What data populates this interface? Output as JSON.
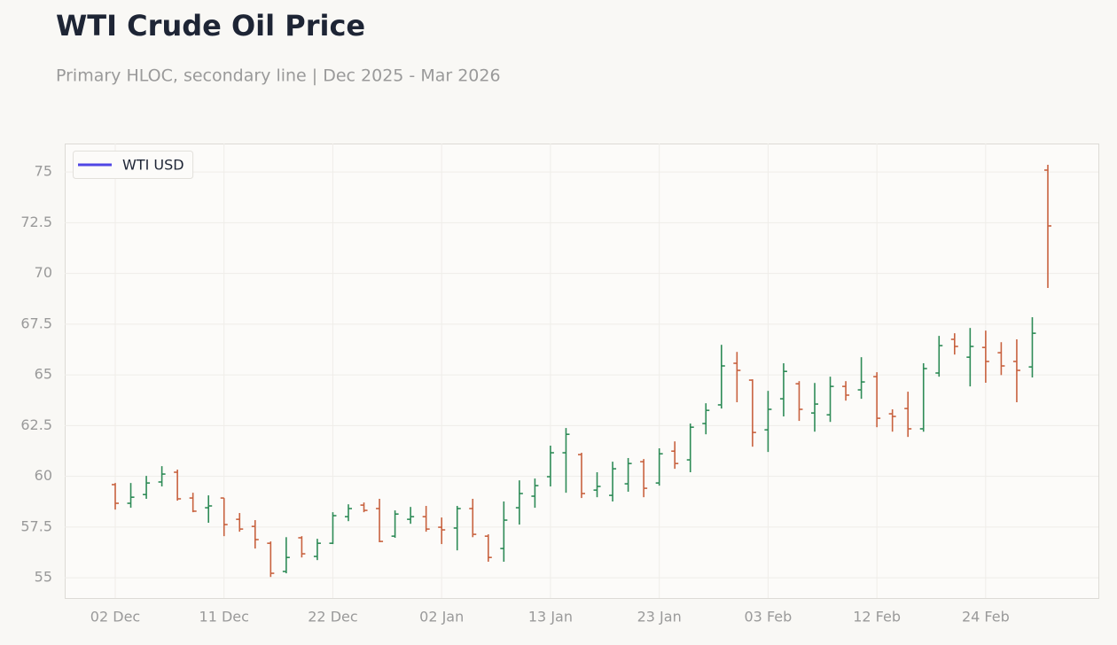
{
  "chart_data": {
    "type": "ohlc",
    "title": "WTI Crude Oil Price",
    "subtitle": "Primary HLOC, secondary line | Dec 2025 - Mar 2026",
    "categories": [
      "02 Dec",
      null,
      null,
      null,
      null,
      null,
      null,
      "11 Dec",
      null,
      null,
      null,
      null,
      null,
      null,
      "22 Dec",
      null,
      null,
      null,
      null,
      null,
      null,
      "02 Jan",
      null,
      null,
      null,
      null,
      null,
      null,
      "13 Jan",
      null,
      null,
      null,
      null,
      null,
      null,
      "23 Jan",
      null,
      null,
      null,
      null,
      null,
      null,
      "03 Feb",
      null,
      null,
      null,
      null,
      null,
      null,
      "12 Feb",
      null,
      null,
      null,
      null,
      null,
      null,
      "24 Feb",
      null,
      null,
      null,
      null
    ],
    "series": [
      {
        "name": "WTI USD",
        "color": "#4f46e5",
        "open": [
          59.59,
          58.67,
          59.1,
          59.72,
          60.2,
          58.93,
          58.45,
          58.93,
          57.88,
          57.53,
          56.7,
          55.31,
          56.97,
          56.05,
          56.7,
          58.01,
          58.58,
          58.41,
          57.05,
          57.88,
          58.01,
          57.49,
          57.45,
          58.41,
          57.05,
          56.44,
          58.45,
          59.02,
          59.98,
          61.16,
          61.07,
          59.32,
          59.06,
          59.63,
          60.72,
          59.67,
          61.24,
          60.81,
          62.6,
          63.52,
          65.57,
          64.74,
          62.29,
          63.82,
          64.56,
          63.12,
          63.03,
          64.43,
          64.26,
          64.91,
          63.08,
          63.34,
          62.34,
          65.09,
          66.75,
          65.87,
          66.35,
          66.09,
          65.66,
          65.39,
          75.09
        ],
        "high": [
          59.67,
          59.67,
          60.02,
          60.5,
          60.33,
          59.19,
          59.06,
          58.93,
          58.19,
          57.84,
          56.79,
          57.0,
          57.05,
          56.92,
          58.23,
          58.62,
          58.71,
          58.89,
          58.32,
          58.49,
          58.54,
          57.97,
          58.54,
          58.89,
          57.14,
          58.76,
          59.8,
          59.89,
          61.51,
          62.38,
          61.16,
          60.2,
          60.72,
          60.9,
          60.85,
          61.38,
          61.72,
          62.6,
          63.6,
          66.48,
          66.13,
          64.78,
          64.21,
          65.57,
          64.69,
          64.6,
          64.91,
          64.69,
          65.87,
          65.13,
          63.3,
          64.17,
          65.57,
          66.92,
          67.05,
          67.31,
          67.18,
          66.61,
          66.75,
          67.84,
          75.35
        ],
        "low": [
          58.36,
          58.45,
          58.89,
          59.5,
          58.8,
          58.23,
          57.71,
          57.05,
          57.27,
          56.44,
          55.04,
          55.22,
          56.0,
          55.87,
          56.66,
          57.79,
          58.23,
          56.75,
          56.97,
          57.66,
          57.27,
          56.66,
          56.35,
          57.0,
          55.79,
          55.79,
          57.62,
          58.45,
          59.5,
          59.19,
          58.93,
          58.97,
          58.76,
          59.24,
          58.97,
          59.54,
          60.37,
          60.2,
          62.07,
          63.34,
          63.65,
          61.46,
          61.2,
          62.95,
          62.73,
          62.2,
          62.68,
          63.73,
          63.82,
          62.42,
          62.2,
          61.94,
          62.2,
          64.91,
          66.0,
          64.43,
          64.61,
          64.99,
          63.65,
          64.87,
          69.28
        ],
        "close": [
          58.67,
          58.97,
          59.67,
          60.11,
          58.89,
          58.28,
          58.54,
          57.62,
          57.4,
          56.88,
          55.22,
          56.0,
          56.18,
          56.7,
          58.06,
          58.41,
          58.32,
          56.79,
          58.14,
          58.01,
          57.4,
          57.36,
          58.41,
          57.14,
          56.0,
          57.84,
          59.15,
          59.54,
          61.16,
          62.07,
          59.15,
          59.5,
          60.37,
          60.63,
          59.41,
          61.11,
          60.63,
          62.42,
          63.25,
          65.44,
          65.22,
          62.16,
          63.3,
          65.17,
          63.3,
          63.56,
          64.43,
          64.0,
          64.65,
          62.86,
          62.95,
          62.34,
          65.31,
          66.44,
          66.4,
          66.4,
          65.66,
          65.44,
          65.22,
          67.05,
          72.34
        ]
      }
    ],
    "up_color": "#2e8b57",
    "down_color": "#c8623f",
    "ylim": [
      54,
      76.4
    ],
    "yticks": [
      55,
      57.5,
      60,
      62.5,
      65,
      67.5,
      70,
      72.5,
      75
    ],
    "grid": true,
    "legend": "upper left"
  }
}
